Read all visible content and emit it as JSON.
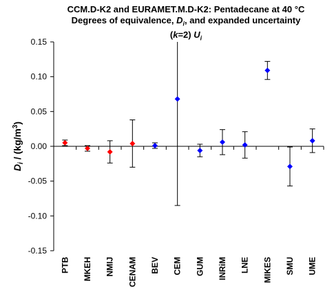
{
  "chart_data": {
    "type": "scatter",
    "title_lines": [
      "CCM.D-K2 and EURAMET.M.D-K2: Pentadecane at 40 °C",
      "Degrees of equivalence, Di, and expanded uncertainty",
      "(k=2) Ui"
    ],
    "ylabel": "Di / (kg/m3)",
    "ylim": [
      -0.15,
      0.15
    ],
    "yticks": [
      "0.15",
      "0.10",
      "0.05",
      "0.00",
      "-0.05",
      "-0.10",
      "-0.15"
    ],
    "ytick_values": [
      0.15,
      0.1,
      0.05,
      0.0,
      -0.05,
      -0.1,
      -0.15
    ],
    "grid": false,
    "categories": [
      "PTB",
      "MKEH",
      "NMIJ",
      "CENAM",
      "BEV",
      "CEM",
      "GUM",
      "INRiM",
      "LNE",
      "MIKES",
      "SMU",
      "UME"
    ],
    "values": [
      0.005,
      -0.003,
      -0.008,
      0.004,
      0.001,
      0.068,
      -0.006,
      0.006,
      0.002,
      0.109,
      -0.029,
      0.008
    ],
    "uncertainties": [
      0.004,
      0.004,
      0.016,
      0.034,
      0.004,
      0.153,
      0.009,
      0.018,
      0.019,
      0.013,
      0.028,
      0.017
    ],
    "colors": [
      "#ff0000",
      "#ff0000",
      "#ff0000",
      "#ff0000",
      "#0000ff",
      "#0000ff",
      "#0000ff",
      "#0000ff",
      "#0000ff",
      "#0000ff",
      "#0000ff",
      "#0000ff"
    ]
  }
}
